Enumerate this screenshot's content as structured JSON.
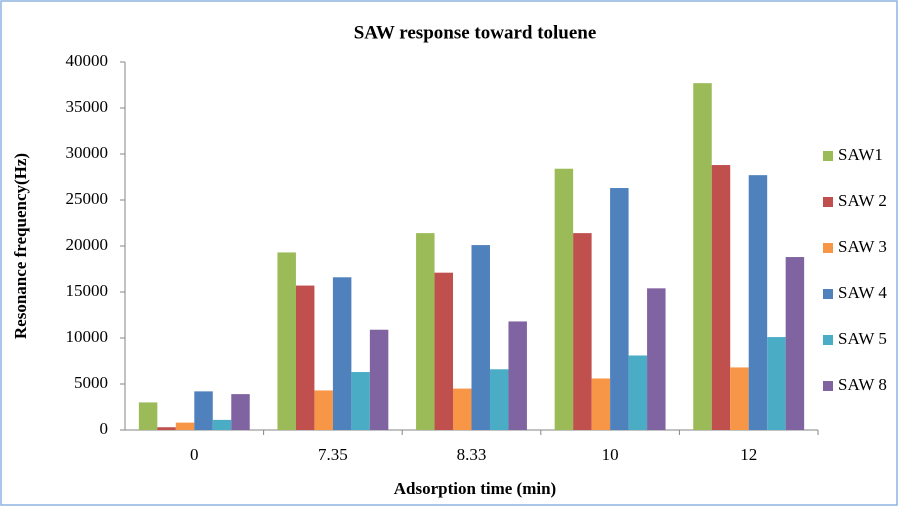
{
  "chart_data": {
    "type": "bar",
    "title": "SAW response toward toluene",
    "x_label": "Adsorption time (min)",
    "y_label": "Resonance  frequency(Hz)",
    "categories": [
      "0",
      "7.35",
      "8.33",
      "10",
      "12"
    ],
    "series": [
      {
        "name": "SAW1",
        "color": "#9bbb59",
        "values": [
          3000,
          19300,
          21400,
          28400,
          37700
        ]
      },
      {
        "name": "SAW 2",
        "color": "#c0504d",
        "values": [
          300,
          15700,
          17100,
          21400,
          28800
        ]
      },
      {
        "name": "SAW 3",
        "color": "#f79646",
        "values": [
          800,
          4300,
          4500,
          5600,
          6800
        ]
      },
      {
        "name": "SAW 4",
        "color": "#4f81bd",
        "values": [
          4200,
          16600,
          20100,
          26300,
          27700
        ]
      },
      {
        "name": "SAW 5",
        "color": "#4bacc6",
        "values": [
          1100,
          6300,
          6600,
          8100,
          10100
        ]
      },
      {
        "name": "SAW 8",
        "color": "#8064a2",
        "values": [
          3900,
          10900,
          11800,
          15400,
          18800
        ]
      }
    ],
    "ylim": [
      0,
      40000
    ],
    "yticks": [
      0,
      5000,
      10000,
      15000,
      20000,
      25000,
      30000,
      35000,
      40000
    ],
    "grid": false,
    "legend": "right"
  }
}
